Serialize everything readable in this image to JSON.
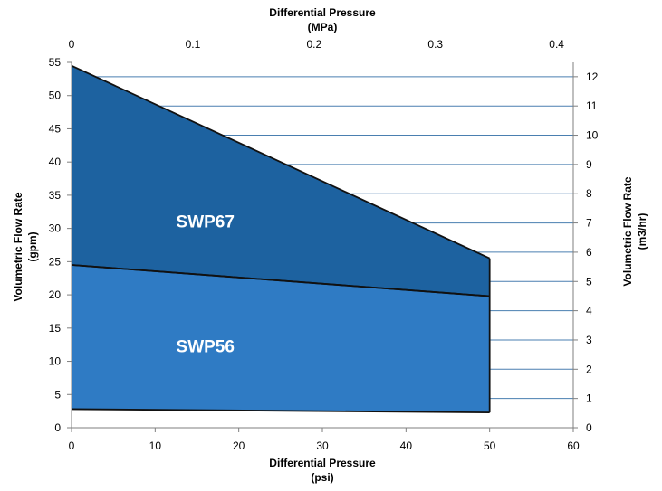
{
  "chart_data": {
    "type": "area",
    "x_bottom": {
      "label_line1": "Differential Pressure",
      "label_line2": "(psi)",
      "range": [
        0,
        60
      ],
      "ticks": [
        0,
        10,
        20,
        30,
        40,
        50,
        60
      ]
    },
    "x_top": {
      "label_line1": "Differential Pressure",
      "label_line2": "(MPa)",
      "range": [
        0,
        0.4137
      ],
      "ticks": [
        "0",
        "0.1",
        "0.2",
        "0.3",
        "0.4"
      ]
    },
    "y_left": {
      "label_line1": "Volumetric Flow Rate",
      "label_line2": "(gpm)",
      "range": [
        0,
        55
      ],
      "ticks": [
        0,
        5,
        10,
        15,
        20,
        25,
        30,
        35,
        40,
        45,
        50,
        55
      ]
    },
    "y_right": {
      "label_line1": "Volumetric Flow Rate",
      "label_line2": "(m3/hr)",
      "range": [
        0,
        12.49
      ],
      "ticks": [
        0,
        1,
        2,
        3,
        4,
        5,
        6,
        7,
        8,
        9,
        10,
        11,
        12
      ]
    },
    "series": [
      {
        "name": "SWP67",
        "color": "#1d62a0",
        "upper": [
          [
            0,
            54.5
          ],
          [
            50,
            25.5
          ]
        ],
        "lower": [
          [
            0,
            24.5
          ],
          [
            50,
            19.8
          ]
        ]
      },
      {
        "name": "SWP56",
        "color": "#2f7bc4",
        "upper": [
          [
            0,
            24.5
          ],
          [
            50,
            19.8
          ]
        ],
        "lower": [
          [
            0,
            2.8
          ],
          [
            50,
            2.3
          ]
        ]
      }
    ],
    "gridlines": "horizontal, right-axis ticks",
    "grid_color": "#4a7fb0"
  }
}
